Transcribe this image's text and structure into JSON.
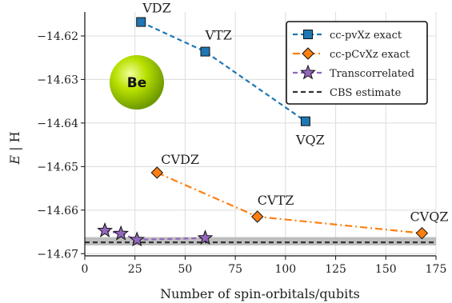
{
  "chart_data": {
    "type": "line",
    "xlabel": "Number of spin-orbitals/qubits",
    "ylabel_italic": "E",
    "ylabel_rest": " | H",
    "xlim": [
      0,
      175
    ],
    "ylim": [
      -14.6705,
      -14.6145
    ],
    "xticks": [
      0,
      25,
      50,
      75,
      100,
      125,
      150,
      175
    ],
    "yticks": [
      -14.62,
      -14.63,
      -14.64,
      -14.65,
      -14.66,
      -14.67
    ],
    "ytick_labels": [
      "−14.62",
      "−14.63",
      "−14.64",
      "−14.65",
      "−14.66",
      "−14.67"
    ],
    "grid": true,
    "legend_position": "top-right",
    "badge_label": "Be",
    "series": [
      {
        "name": "cc-pvXz exact",
        "color": "#1f77b4",
        "marker": "square",
        "linestyle": "dashed",
        "x": [
          28,
          60,
          110
        ],
        "y": [
          -14.6168,
          -14.6236,
          -14.6396
        ],
        "point_labels": [
          "VDZ",
          "VTZ",
          "VQZ"
        ]
      },
      {
        "name": "cc-pCvXz exact",
        "color": "#ff7f0e",
        "marker": "diamond",
        "linestyle": "dashdot",
        "x": [
          36,
          86,
          168
        ],
        "y": [
          -14.6514,
          -14.6615,
          -14.6653
        ],
        "point_labels": [
          "CVDZ",
          "CVTZ",
          "CVQZ"
        ]
      },
      {
        "name": "Transcorrelated",
        "color": "#9467bd",
        "marker": "star",
        "linestyle": "dashed",
        "x": [
          10,
          18,
          26,
          60
        ],
        "y": [
          -14.6647,
          -14.6654,
          -14.6668,
          -14.6664
        ],
        "point_labels": []
      },
      {
        "name": "CBS estimate",
        "color": "#333333",
        "marker": "none",
        "linestyle": "dashed",
        "y_value": -14.6674,
        "band": [
          -14.6681,
          -14.6662
        ]
      }
    ]
  }
}
